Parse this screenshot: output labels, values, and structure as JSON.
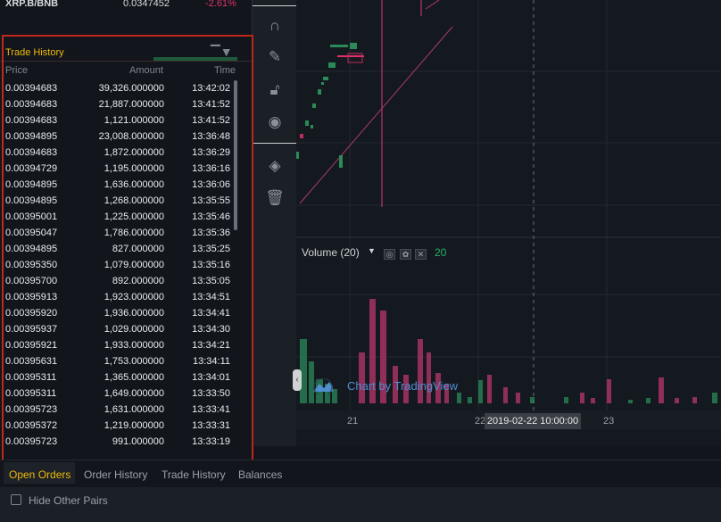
{
  "market": {
    "symbol": "XRP.B/BNB",
    "price": "0.0347452",
    "change": "-2.61%"
  },
  "trade_history": {
    "title": "Trade History",
    "columns": {
      "price": "Price",
      "amount": "Amount",
      "time": "Time"
    },
    "rows": [
      {
        "price": "0.00394683",
        "amount": "39,326.000000",
        "time": "13:42:02"
      },
      {
        "price": "0.00394683",
        "amount": "21,887.000000",
        "time": "13:41:52"
      },
      {
        "price": "0.00394683",
        "amount": "1,121.000000",
        "time": "13:41:52"
      },
      {
        "price": "0.00394895",
        "amount": "23,008.000000",
        "time": "13:36:48"
      },
      {
        "price": "0.00394683",
        "amount": "1,872.000000",
        "time": "13:36:29"
      },
      {
        "price": "0.00394729",
        "amount": "1,195.000000",
        "time": "13:36:16"
      },
      {
        "price": "0.00394895",
        "amount": "1,636.000000",
        "time": "13:36:06"
      },
      {
        "price": "0.00394895",
        "amount": "1,268.000000",
        "time": "13:35:55"
      },
      {
        "price": "0.00395001",
        "amount": "1,225.000000",
        "time": "13:35:46"
      },
      {
        "price": "0.00395047",
        "amount": "1,786.000000",
        "time": "13:35:36"
      },
      {
        "price": "0.00394895",
        "amount": "827.000000",
        "time": "13:35:25"
      },
      {
        "price": "0.00395350",
        "amount": "1,079.000000",
        "time": "13:35:16"
      },
      {
        "price": "0.00395700",
        "amount": "892.000000",
        "time": "13:35:05"
      },
      {
        "price": "0.00395913",
        "amount": "1,923.000000",
        "time": "13:34:51"
      },
      {
        "price": "0.00395920",
        "amount": "1,936.000000",
        "time": "13:34:41"
      },
      {
        "price": "0.00395937",
        "amount": "1,029.000000",
        "time": "13:34:30"
      },
      {
        "price": "0.00395921",
        "amount": "1,933.000000",
        "time": "13:34:21"
      },
      {
        "price": "0.00395631",
        "amount": "1,753.000000",
        "time": "13:34:11"
      },
      {
        "price": "0.00395311",
        "amount": "1,365.000000",
        "time": "13:34:01"
      },
      {
        "price": "0.00395311",
        "amount": "1,649.000000",
        "time": "13:33:50"
      },
      {
        "price": "0.00395723",
        "amount": "1,631.000000",
        "time": "13:33:41"
      },
      {
        "price": "0.00395372",
        "amount": "1,219.000000",
        "time": "13:33:31"
      },
      {
        "price": "0.00395723",
        "amount": "991.000000",
        "time": "13:33:19"
      }
    ]
  },
  "toolbar": {
    "tools": [
      "magnet-icon",
      "pencil-lock-icon",
      "unlock-icon",
      "eye-icon",
      "layers-icon",
      "trash-icon"
    ]
  },
  "chart": {
    "volume_label": "Volume (20)",
    "volume_value": "20",
    "watermark": "Chart by TradingView",
    "x_ticks": [
      "21",
      "22",
      "23"
    ],
    "crosshair_label": "2019-02-22 10:00:00"
  },
  "tabs": {
    "open_orders": "Open Orders",
    "order_history": "Order History",
    "trade_history": "Trade History",
    "balances": "Balances"
  },
  "footer": {
    "hide_other_pairs": "Hide Other Pairs"
  },
  "colors": {
    "accent": "#f0b90b",
    "up": "#27b06a",
    "down": "#e0306a",
    "highlight": "#c0271c"
  }
}
